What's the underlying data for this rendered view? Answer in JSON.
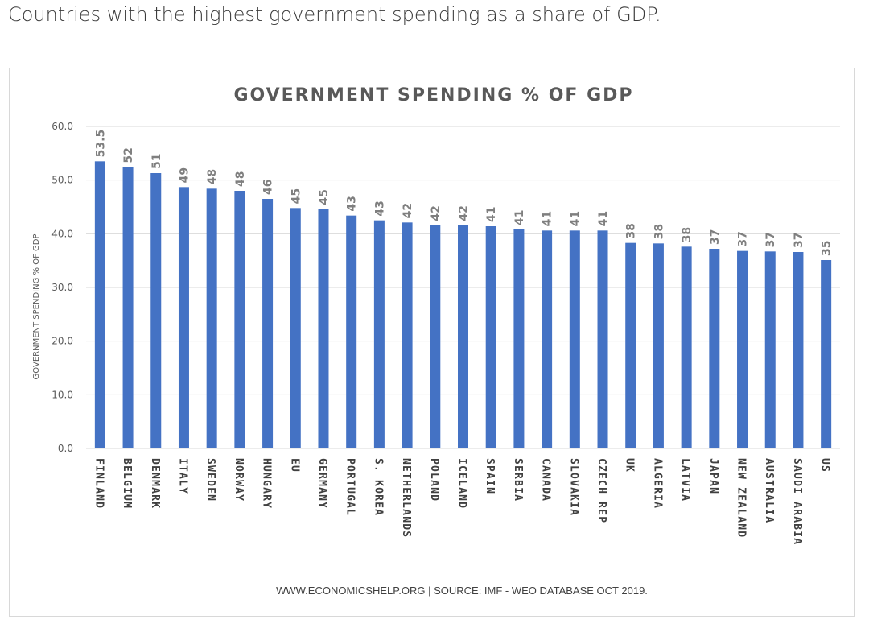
{
  "page": {
    "heading": "Countries with the highest government spending as a share of GDP."
  },
  "chart_data": {
    "type": "bar",
    "title": "GOVERNMENT SPENDING % OF GDP",
    "xlabel": "",
    "ylabel": "GOVERNMENT SPENDING % OF GDP",
    "ylim": [
      0,
      60
    ],
    "y_ticks": [
      "0.0",
      "10.0",
      "20.0",
      "30.0",
      "40.0",
      "50.0",
      "60.0"
    ],
    "grid": true,
    "categories": [
      "FINLAND",
      "BELGIUM",
      "DENMARK",
      "ITALY",
      "SWEDEN",
      "NORWAY",
      "HUNGARY",
      "EU",
      "GERMANY",
      "PORTUGAL",
      "S. KOREA",
      "NETHERLANDS",
      "POLAND",
      "ICELAND",
      "SPAIN",
      "SERBIA",
      "CANADA",
      "SLOVAKIA",
      "CZECH REP",
      "UK",
      "ALGERIA",
      "LATVIA",
      "JAPAN",
      "NEW ZEALAND",
      "AUSTRALIA",
      "SAUDI ARABIA",
      "US"
    ],
    "values": [
      53.5,
      52.4,
      51.3,
      48.7,
      48.4,
      48.0,
      46.5,
      44.8,
      44.6,
      43.4,
      42.5,
      42.1,
      41.6,
      41.6,
      41.4,
      40.8,
      40.6,
      40.6,
      40.6,
      38.3,
      38.2,
      37.6,
      37.2,
      36.8,
      36.7,
      36.6,
      35.1
    ],
    "data_labels": [
      "53.5",
      "52",
      "51",
      "49",
      "48",
      "48",
      "46",
      "45",
      "45",
      "43",
      "43",
      "42",
      "42",
      "42",
      "41",
      "41",
      "41",
      "41",
      "41",
      "38",
      "38",
      "38",
      "37",
      "37",
      "37",
      "37",
      "35"
    ],
    "bar_color": "#4472c4",
    "source": "WWW.ECONOMICSHELP.ORG | SOURCE: IMF - WEO DATABASE OCT 2019."
  }
}
